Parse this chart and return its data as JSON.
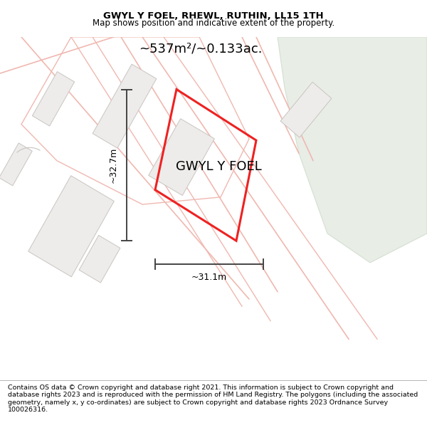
{
  "title": "GWYL Y FOEL, RHEWL, RUTHIN, LL15 1TH",
  "subtitle": "Map shows position and indicative extent of the property.",
  "property_label": "GWYL Y FOEL",
  "area_label": "~537m²/~0.133ac.",
  "width_label": "~31.1m",
  "height_label": "~32.7m",
  "footer_text": "Contains OS data © Crown copyright and database right 2021. This information is subject to Crown copyright and database rights 2023 and is reproduced with the permission of HM Land Registry. The polygons (including the associated geometry, namely x, y co-ordinates) are subject to Crown copyright and database rights 2023 Ordnance Survey 100026316.",
  "bg_color": "#f8f7f5",
  "building_color": "#eeeceb",
  "building_outline": "#c8c4c0",
  "green_color": "#e8ede6",
  "green_outline": "#d4e0d0",
  "plot_color": "#ee2222",
  "dim_color": "#444444",
  "road_line_color": "#f0b8b0",
  "title_fontsize": 9.5,
  "subtitle_fontsize": 8.5,
  "label_fontsize": 13,
  "dim_fontsize": 9,
  "footer_fontsize": 6.8
}
